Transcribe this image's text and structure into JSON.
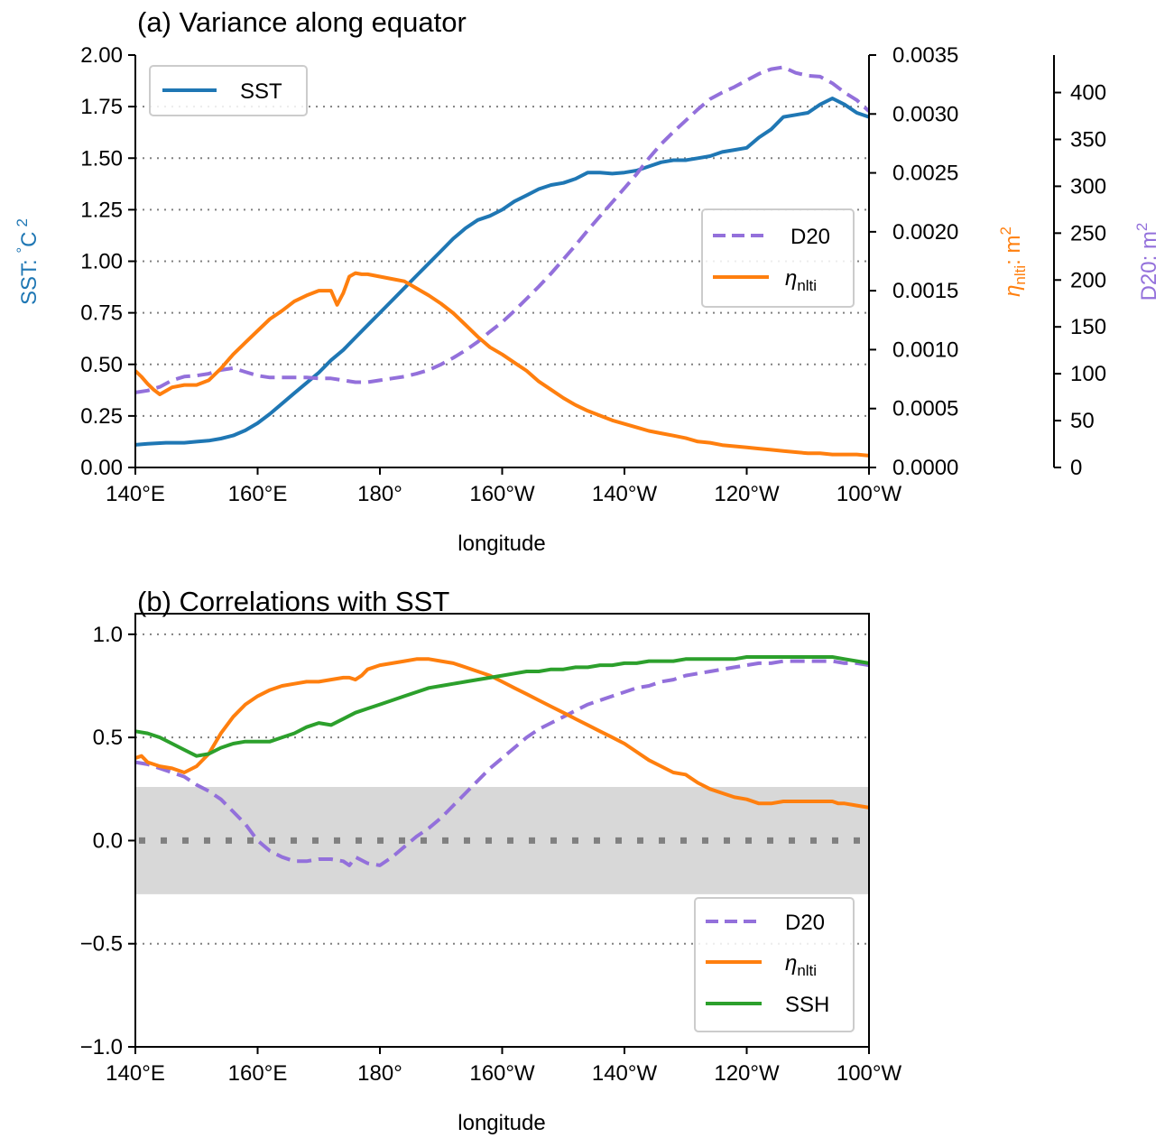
{
  "chart_data": [
    {
      "type": "line",
      "title": "(a) Variance along equator",
      "xlabel": "longitude",
      "x_ticks": [
        140,
        160,
        180,
        200,
        220,
        240,
        260
      ],
      "x_tick_labels": [
        "140°E",
        "160°E",
        "180°",
        "160°W",
        "140°W",
        "120°W",
        "100°W"
      ],
      "xlim": [
        140,
        260
      ],
      "grid": "horizontal dotted",
      "axes": {
        "left": {
          "label_parts": {
            "main": "SST: ",
            "deg": "°",
            "unit": "C",
            "sup": "2"
          },
          "color": "#1f77b4",
          "ylim": [
            0,
            2.0
          ],
          "ticks": [
            0,
            0.25,
            0.5,
            0.75,
            1.0,
            1.25,
            1.5,
            1.75,
            2.0
          ],
          "tick_labels": [
            "0.00",
            "0.25",
            "0.50",
            "0.75",
            "1.00",
            "1.25",
            "1.50",
            "1.75",
            "2.00"
          ]
        },
        "right1": {
          "label_parts": {
            "eta": "η",
            "sub": "nlti",
            "rest": ": m",
            "sup": "2"
          },
          "color": "#ff7f0e",
          "ylim": [
            0,
            0.0035
          ],
          "ticks": [
            0,
            0.0005,
            0.001,
            0.0015,
            0.002,
            0.0025,
            0.003,
            0.0035
          ],
          "tick_labels": [
            "0.0000",
            "0.0005",
            "0.0010",
            "0.0015",
            "0.0020",
            "0.0025",
            "0.0030",
            "0.0035"
          ]
        },
        "right2": {
          "label_parts": {
            "main": "D20: m",
            "sup": "2"
          },
          "color": "#9370db",
          "ylim": [
            0,
            440
          ],
          "ticks": [
            0,
            50,
            100,
            150,
            200,
            250,
            300,
            350,
            400
          ],
          "tick_labels": [
            "0",
            "50",
            "100",
            "150",
            "200",
            "250",
            "300",
            "350",
            "400"
          ]
        }
      },
      "series": [
        {
          "name": "SST",
          "axis": "left",
          "color": "#1f77b4",
          "style": "solid",
          "x": [
            140,
            142,
            145,
            148,
            150,
            152,
            154,
            156,
            158,
            160,
            162,
            164,
            166,
            168,
            170,
            172,
            174,
            176,
            178,
            180,
            182,
            184,
            186,
            188,
            190,
            192,
            194,
            196,
            198,
            200,
            202,
            204,
            206,
            208,
            210,
            212,
            214,
            216,
            218,
            220,
            222,
            224,
            226,
            228,
            230,
            232,
            234,
            236,
            238,
            240,
            242,
            244,
            246,
            248,
            250,
            252,
            254,
            256,
            258,
            260
          ],
          "y": [
            0.11,
            0.115,
            0.12,
            0.12,
            0.125,
            0.13,
            0.14,
            0.155,
            0.18,
            0.215,
            0.26,
            0.31,
            0.36,
            0.41,
            0.46,
            0.52,
            0.57,
            0.63,
            0.69,
            0.75,
            0.81,
            0.87,
            0.93,
            0.99,
            1.05,
            1.11,
            1.16,
            1.2,
            1.22,
            1.25,
            1.29,
            1.32,
            1.35,
            1.37,
            1.38,
            1.4,
            1.43,
            1.43,
            1.425,
            1.43,
            1.44,
            1.46,
            1.48,
            1.49,
            1.49,
            1.5,
            1.51,
            1.53,
            1.54,
            1.55,
            1.6,
            1.64,
            1.7,
            1.71,
            1.72,
            1.76,
            1.79,
            1.76,
            1.72,
            1.7
          ]
        },
        {
          "name": "D20",
          "axis": "right2",
          "color": "#9370db",
          "style": "dashed",
          "x": [
            140,
            142,
            144,
            146,
            148,
            150,
            152,
            154,
            156,
            158,
            160,
            162,
            164,
            166,
            168,
            170,
            172,
            174,
            176,
            178,
            180,
            182,
            184,
            186,
            188,
            190,
            192,
            194,
            196,
            198,
            200,
            202,
            204,
            206,
            208,
            210,
            212,
            214,
            216,
            218,
            220,
            222,
            224,
            226,
            228,
            230,
            232,
            234,
            236,
            238,
            240,
            242,
            244,
            246,
            248,
            250,
            252,
            254,
            256,
            258,
            260
          ],
          "y": [
            80,
            82,
            86,
            93,
            97,
            98,
            100,
            104,
            106,
            102,
            98,
            96,
            96,
            96,
            96,
            95,
            95,
            93,
            91,
            91,
            93,
            95,
            97,
            100,
            104,
            110,
            117,
            125,
            134,
            145,
            155,
            167,
            180,
            193,
            207,
            222,
            237,
            253,
            268,
            283,
            298,
            313,
            330,
            345,
            358,
            370,
            382,
            393,
            400,
            406,
            413,
            420,
            425,
            427,
            421,
            418,
            417,
            410,
            400,
            392,
            380
          ]
        },
        {
          "name": "ηnlti",
          "axis": "right1",
          "color": "#ff7f0e",
          "style": "solid",
          "x": [
            140,
            141,
            142,
            143,
            144,
            145,
            146,
            148,
            150,
            152,
            154,
            156,
            158,
            160,
            162,
            164,
            166,
            168,
            170,
            172,
            173,
            174,
            175,
            176,
            177,
            178,
            180,
            182,
            184,
            186,
            188,
            190,
            192,
            194,
            196,
            198,
            200,
            202,
            204,
            206,
            208,
            210,
            212,
            214,
            216,
            218,
            220,
            222,
            224,
            226,
            228,
            230,
            232,
            234,
            236,
            238,
            240,
            242,
            244,
            246,
            248,
            250,
            252,
            254,
            256,
            258,
            260
          ],
          "y": [
            0.00082,
            0.00077,
            0.00071,
            0.00066,
            0.00062,
            0.00065,
            0.00068,
            0.0007,
            0.0007,
            0.00074,
            0.00084,
            0.00096,
            0.00106,
            0.00116,
            0.00126,
            0.00133,
            0.00141,
            0.00146,
            0.0015,
            0.0015,
            0.00138,
            0.00148,
            0.00162,
            0.00165,
            0.00164,
            0.00164,
            0.00162,
            0.0016,
            0.00158,
            0.00152,
            0.00146,
            0.00139,
            0.00131,
            0.00121,
            0.00111,
            0.00102,
            0.00096,
            0.00089,
            0.00082,
            0.00073,
            0.00066,
            0.00059,
            0.00053,
            0.00048,
            0.00044,
            0.0004,
            0.00037,
            0.00034,
            0.00031,
            0.00029,
            0.00027,
            0.00025,
            0.00022,
            0.00021,
            0.00019,
            0.00018,
            0.00017,
            0.00016,
            0.00015,
            0.00014,
            0.00013,
            0.00012,
            0.00012,
            0.00011,
            0.00011,
            0.00011,
            0.0001
          ]
        }
      ],
      "legends": [
        {
          "position": "top-left",
          "entries": [
            "SST"
          ]
        },
        {
          "position": "center-right",
          "entries": [
            "D20",
            "ηnlti"
          ]
        }
      ]
    },
    {
      "type": "line",
      "title": "(b) Correlations with SST",
      "xlabel": "longitude",
      "x_ticks": [
        140,
        160,
        180,
        200,
        220,
        240,
        260
      ],
      "x_tick_labels": [
        "140°E",
        "160°E",
        "180°",
        "160°W",
        "140°W",
        "120°W",
        "100°W"
      ],
      "xlim": [
        140,
        260
      ],
      "ylim": [
        -1.0,
        1.1
      ],
      "y_ticks": [
        -1.0,
        -0.5,
        0.0,
        0.5,
        1.0
      ],
      "y_tick_labels": [
        "−1.0",
        "−0.5",
        "0.0",
        "0.5",
        "1.0"
      ],
      "grid": "horizontal dotted",
      "shaded_band": {
        "y0": -0.26,
        "y1": 0.26,
        "color": "#d8d8d8"
      },
      "zero_line": {
        "y": 0,
        "color": "#808080",
        "style": "dotted-squares"
      },
      "series": [
        {
          "name": "D20",
          "color": "#9370db",
          "style": "dashed",
          "x": [
            140,
            142,
            144,
            146,
            148,
            150,
            152,
            154,
            156,
            158,
            160,
            162,
            164,
            166,
            168,
            170,
            172,
            174,
            175,
            176,
            178,
            180,
            182,
            184,
            186,
            188,
            190,
            192,
            194,
            196,
            198,
            200,
            202,
            204,
            206,
            208,
            210,
            212,
            214,
            216,
            218,
            220,
            222,
            224,
            226,
            228,
            230,
            232,
            234,
            236,
            238,
            240,
            242,
            244,
            246,
            248,
            250,
            252,
            254,
            256,
            258,
            260
          ],
          "y": [
            0.38,
            0.37,
            0.35,
            0.33,
            0.31,
            0.27,
            0.24,
            0.2,
            0.14,
            0.08,
            0.0,
            -0.05,
            -0.08,
            -0.1,
            -0.1,
            -0.09,
            -0.09,
            -0.1,
            -0.12,
            -0.08,
            -0.11,
            -0.12,
            -0.08,
            -0.03,
            0.02,
            0.06,
            0.11,
            0.17,
            0.23,
            0.29,
            0.35,
            0.4,
            0.45,
            0.5,
            0.54,
            0.57,
            0.6,
            0.63,
            0.66,
            0.68,
            0.7,
            0.72,
            0.74,
            0.75,
            0.77,
            0.78,
            0.8,
            0.81,
            0.82,
            0.83,
            0.84,
            0.85,
            0.86,
            0.86,
            0.87,
            0.87,
            0.87,
            0.87,
            0.87,
            0.86,
            0.86,
            0.85
          ]
        },
        {
          "name": "ηnlti",
          "color": "#ff7f0e",
          "style": "solid",
          "x": [
            140,
            141,
            142,
            144,
            146,
            148,
            150,
            152,
            154,
            156,
            158,
            160,
            162,
            164,
            166,
            168,
            170,
            172,
            174,
            175,
            176,
            177,
            178,
            180,
            182,
            184,
            186,
            188,
            190,
            192,
            194,
            196,
            198,
            200,
            202,
            204,
            206,
            208,
            210,
            212,
            214,
            216,
            218,
            220,
            222,
            224,
            226,
            228,
            230,
            232,
            234,
            236,
            238,
            240,
            242,
            244,
            246,
            248,
            250,
            252,
            254,
            255,
            256,
            258,
            260
          ],
          "y": [
            0.4,
            0.41,
            0.38,
            0.36,
            0.35,
            0.33,
            0.36,
            0.42,
            0.52,
            0.6,
            0.66,
            0.7,
            0.73,
            0.75,
            0.76,
            0.77,
            0.77,
            0.78,
            0.79,
            0.79,
            0.78,
            0.8,
            0.83,
            0.85,
            0.86,
            0.87,
            0.88,
            0.88,
            0.87,
            0.86,
            0.84,
            0.82,
            0.8,
            0.77,
            0.74,
            0.71,
            0.68,
            0.65,
            0.62,
            0.59,
            0.56,
            0.53,
            0.5,
            0.47,
            0.43,
            0.39,
            0.36,
            0.33,
            0.32,
            0.28,
            0.25,
            0.23,
            0.21,
            0.2,
            0.18,
            0.18,
            0.19,
            0.19,
            0.19,
            0.19,
            0.19,
            0.18,
            0.18,
            0.17,
            0.16
          ]
        },
        {
          "name": "SSH",
          "color": "#2ca02c",
          "style": "solid",
          "x": [
            140,
            142,
            144,
            146,
            148,
            150,
            152,
            154,
            156,
            158,
            160,
            162,
            164,
            166,
            168,
            170,
            172,
            174,
            176,
            178,
            180,
            182,
            184,
            186,
            188,
            190,
            192,
            194,
            196,
            198,
            200,
            202,
            204,
            206,
            208,
            210,
            212,
            214,
            216,
            218,
            220,
            222,
            224,
            226,
            228,
            230,
            232,
            234,
            236,
            238,
            240,
            242,
            244,
            246,
            248,
            250,
            252,
            254,
            256,
            258,
            260
          ],
          "y": [
            0.53,
            0.52,
            0.5,
            0.47,
            0.44,
            0.41,
            0.42,
            0.45,
            0.47,
            0.48,
            0.48,
            0.48,
            0.5,
            0.52,
            0.55,
            0.57,
            0.56,
            0.59,
            0.62,
            0.64,
            0.66,
            0.68,
            0.7,
            0.72,
            0.74,
            0.75,
            0.76,
            0.77,
            0.78,
            0.79,
            0.8,
            0.81,
            0.82,
            0.82,
            0.83,
            0.83,
            0.84,
            0.84,
            0.85,
            0.85,
            0.86,
            0.86,
            0.87,
            0.87,
            0.87,
            0.88,
            0.88,
            0.88,
            0.88,
            0.88,
            0.89,
            0.89,
            0.89,
            0.89,
            0.89,
            0.89,
            0.89,
            0.89,
            0.88,
            0.87,
            0.86
          ]
        }
      ],
      "legends": [
        {
          "position": "lower-right",
          "entries": [
            "D20",
            "ηnlti",
            "SSH"
          ]
        }
      ]
    }
  ]
}
